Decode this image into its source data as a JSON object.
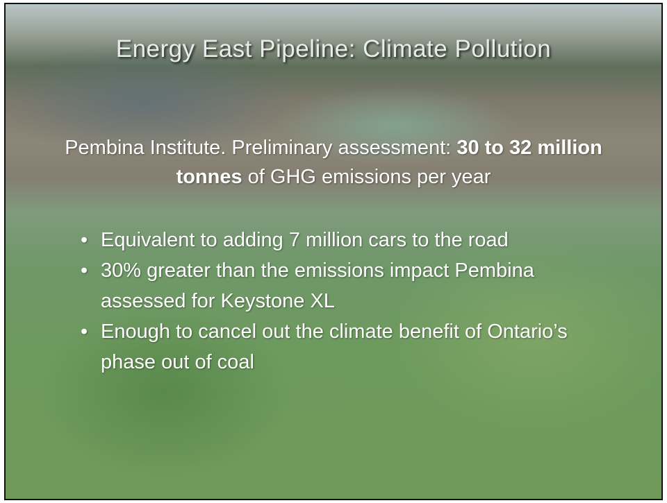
{
  "slide": {
    "title": "Energy East Pipeline: Climate Pollution",
    "intro": [
      "Pembina Institute. Preliminary assessment: ",
      "30 to 32 million tonnes",
      " of GHG emissions per year"
    ],
    "bullets": [
      "Equivalent to adding 7 million cars to the road",
      "30% greater than the emissions impact Pembina assessed for Keystone XL",
      "Enough to cancel out the climate benefit of Ontario’s phase out of coal"
    ]
  }
}
